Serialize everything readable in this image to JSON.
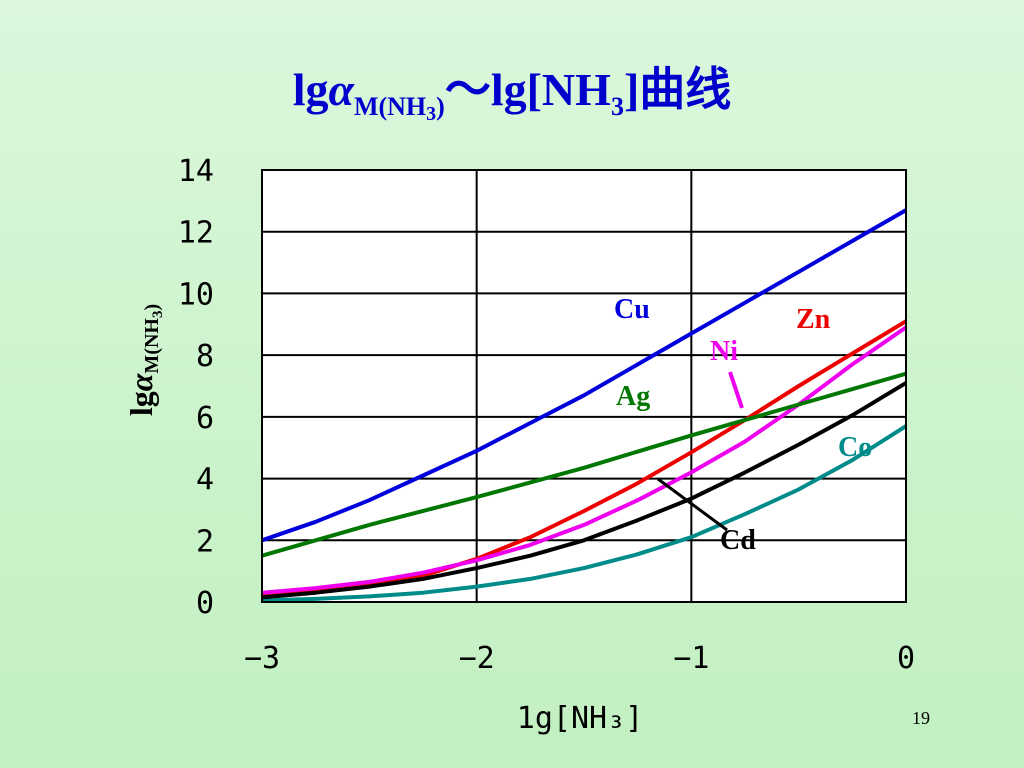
{
  "slide": {
    "title_prefix": "lg",
    "title_alpha": "α",
    "title_sub": "M(NH",
    "title_sub_sub": "3",
    "title_sub_close": ")",
    "title_suffix": "～lg[NH",
    "title_suffix_sub": "3",
    "title_suffix_end": "]曲线",
    "page_number": "19"
  },
  "chart_data": {
    "type": "line",
    "title": "",
    "xlabel": "1g[NH₃]",
    "ylabel": "lgαM(NH3)",
    "xlim": [
      -3,
      0
    ],
    "ylim": [
      0,
      14
    ],
    "xticks": [
      -3,
      -2,
      -1,
      0
    ],
    "xtick_labels": [
      "−3",
      "−2",
      "−1",
      "0"
    ],
    "yticks": [
      0,
      2,
      4,
      6,
      8,
      10,
      12,
      14
    ],
    "ytick_labels": [
      "0",
      "2",
      "4",
      "6",
      "8",
      "10",
      "12",
      "14"
    ],
    "grid": true,
    "series": [
      {
        "name": "Cu",
        "color": "#0000dd",
        "x": [
          -3,
          -2.75,
          -2.5,
          -2.25,
          -2,
          -1.75,
          -1.5,
          -1.25,
          -1,
          -0.75,
          -0.5,
          -0.25,
          0
        ],
        "y": [
          2.0,
          2.6,
          3.3,
          4.1,
          4.9,
          5.8,
          6.7,
          7.7,
          8.7,
          9.7,
          10.7,
          11.7,
          12.7
        ]
      },
      {
        "name": "Zn",
        "color": "#ee0000",
        "x": [
          -3,
          -2.75,
          -2.5,
          -2.25,
          -2,
          -1.75,
          -1.5,
          -1.25,
          -1,
          -0.75,
          -0.5,
          -0.25,
          0
        ],
        "y": [
          0.25,
          0.35,
          0.55,
          0.85,
          1.4,
          2.1,
          2.95,
          3.85,
          4.85,
          5.9,
          7.0,
          8.05,
          9.1
        ]
      },
      {
        "name": "Ni",
        "color": "#ee00ee",
        "x": [
          -3,
          -2.75,
          -2.5,
          -2.25,
          -2,
          -1.75,
          -1.5,
          -1.25,
          -1,
          -0.75,
          -0.5,
          -0.25,
          0
        ],
        "y": [
          0.3,
          0.45,
          0.65,
          0.95,
          1.35,
          1.85,
          2.5,
          3.3,
          4.2,
          5.2,
          6.4,
          7.7,
          8.9
        ]
      },
      {
        "name": "Ag",
        "color": "#007700",
        "x": [
          -3,
          -2.5,
          -2,
          -1.5,
          -1,
          -0.5,
          0
        ],
        "y": [
          1.5,
          2.5,
          3.4,
          4.35,
          5.4,
          6.4,
          7.4
        ]
      },
      {
        "name": "Co",
        "color": "#008b8b",
        "x": [
          -3,
          -2.75,
          -2.5,
          -2.25,
          -2,
          -1.75,
          -1.5,
          -1.25,
          -1,
          -0.75,
          -0.5,
          -0.25,
          0
        ],
        "y": [
          0.05,
          0.1,
          0.18,
          0.3,
          0.5,
          0.75,
          1.1,
          1.55,
          2.1,
          2.85,
          3.65,
          4.6,
          5.7
        ]
      },
      {
        "name": "Cd",
        "color": "#000000",
        "x": [
          -3,
          -2.75,
          -2.5,
          -2.25,
          -2,
          -1.75,
          -1.5,
          -1.25,
          -1,
          -0.75,
          -0.5,
          -0.25,
          0
        ],
        "y": [
          0.15,
          0.3,
          0.5,
          0.75,
          1.1,
          1.5,
          2.0,
          2.65,
          3.35,
          4.2,
          5.1,
          6.05,
          7.1
        ]
      }
    ]
  }
}
